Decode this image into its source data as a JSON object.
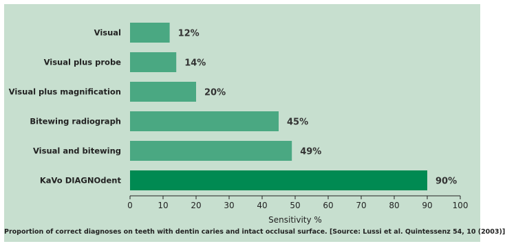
{
  "chart_data": {
    "type": "bar",
    "orientation": "horizontal",
    "categories": [
      "Visual",
      "Visual plus probe",
      "Visual plus magnification",
      "Bitewing radiograph",
      "Visual and bitewing",
      "KaVo DIAGNOdent"
    ],
    "values": [
      12,
      14,
      20,
      45,
      49,
      90
    ],
    "value_labels": [
      "12%",
      "14%",
      "20%",
      "45%",
      "49%",
      "90%"
    ],
    "xlabel": "Sensitivity %",
    "xlim": [
      0,
      100
    ],
    "xticks": [
      0,
      10,
      20,
      30,
      40,
      50,
      60,
      70,
      80,
      90,
      100
    ],
    "grid": false,
    "colors": {
      "bar": "#4aa882",
      "highlight_bar": "#008a52",
      "background": "#c7dfcf"
    },
    "highlight_category": "KaVo DIAGNOdent"
  },
  "caption": "Proportion of correct diagnoses on teeth with dentin caries and intact occlusal surface. [Source: Lussi et al. Quintessenz 54, 10 (2003)]"
}
